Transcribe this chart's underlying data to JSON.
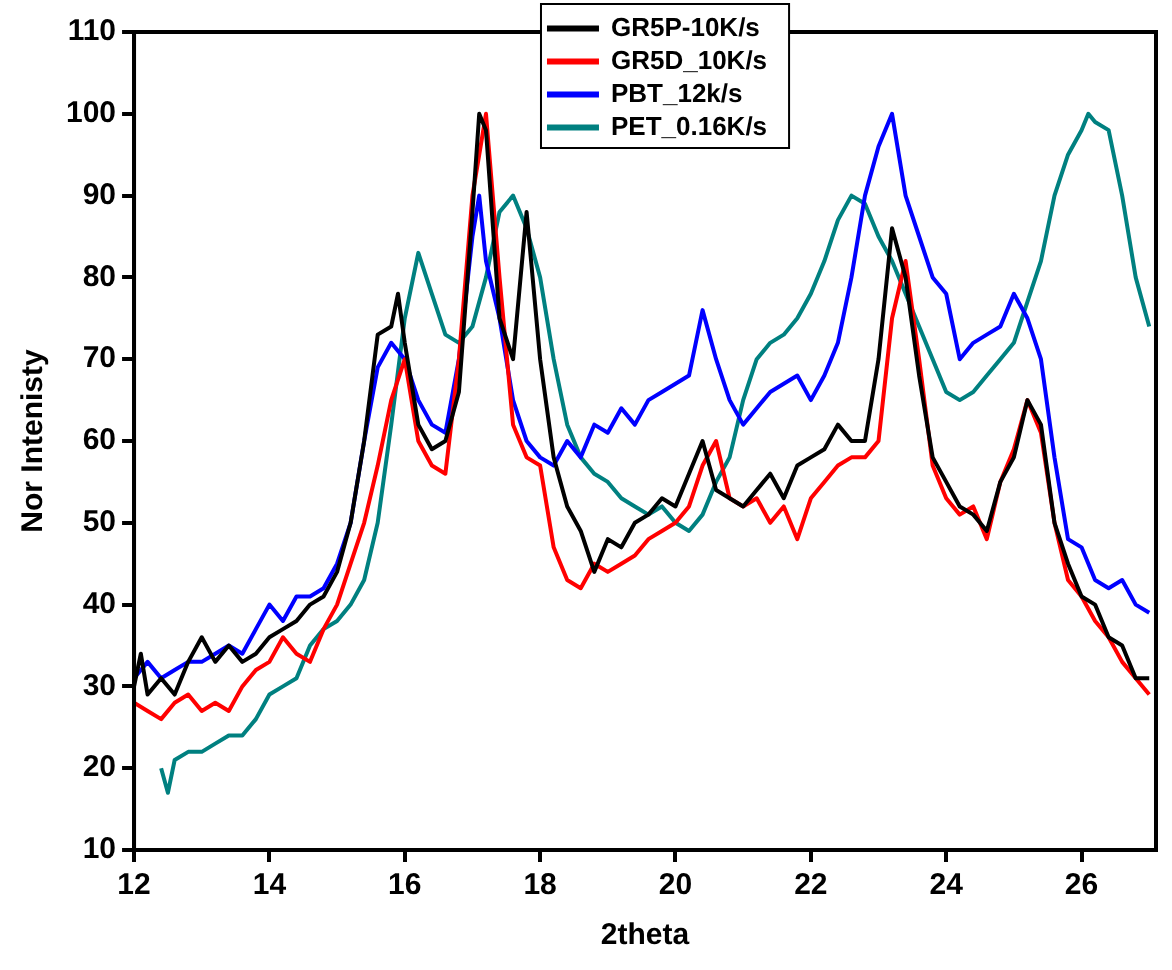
{
  "chart_data": {
    "type": "line",
    "xlabel": "2theta",
    "ylabel": "Nor Intenisty",
    "xlim": [
      12,
      27.1
    ],
    "xticks": [
      12,
      14,
      16,
      18,
      20,
      22,
      24,
      26
    ],
    "ylim": [
      10,
      110
    ],
    "yticks": [
      10,
      20,
      30,
      40,
      50,
      60,
      70,
      80,
      90,
      100,
      110
    ],
    "grid": false,
    "legend": "top",
    "marker": "none",
    "line_style": "solid",
    "series": [
      {
        "name": "GR5P-10K/s",
        "color": "#000000",
        "x": [
          12,
          12.1,
          12.2,
          12.4,
          12.6,
          12.8,
          13,
          13.2,
          13.4,
          13.6,
          13.8,
          14,
          14.2,
          14.4,
          14.6,
          14.8,
          15,
          15.2,
          15.4,
          15.6,
          15.8,
          15.9,
          16,
          16.2,
          16.4,
          16.6,
          16.8,
          17,
          17.1,
          17.2,
          17.4,
          17.6,
          17.8,
          18,
          18.2,
          18.4,
          18.6,
          18.8,
          19,
          19.2,
          19.4,
          19.6,
          19.8,
          20,
          20.2,
          20.4,
          20.6,
          20.8,
          21,
          21.2,
          21.4,
          21.6,
          21.8,
          22,
          22.2,
          22.4,
          22.6,
          22.8,
          23,
          23.2,
          23.4,
          23.6,
          23.8,
          24,
          24.2,
          24.4,
          24.6,
          24.8,
          25,
          25.2,
          25.4,
          25.6,
          25.8,
          26,
          26.2,
          26.4,
          26.6,
          26.8,
          27
        ],
        "values": [
          30,
          34,
          29,
          31,
          29,
          33,
          36,
          33,
          35,
          33,
          34,
          36,
          37,
          38,
          40,
          41,
          44,
          50,
          60,
          73,
          74,
          78,
          72,
          62,
          59,
          60,
          66,
          88,
          100,
          98,
          75,
          70,
          88,
          70,
          58,
          52,
          49,
          44,
          48,
          47,
          50,
          51,
          53,
          52,
          56,
          60,
          54,
          53,
          52,
          54,
          56,
          53,
          57,
          58,
          59,
          62,
          60,
          60,
          70,
          86,
          80,
          68,
          58,
          55,
          52,
          51,
          49,
          55,
          58,
          65,
          62,
          50,
          45,
          41,
          40,
          36,
          35,
          31,
          31
        ]
      },
      {
        "name": "GR5D_10K/s",
        "color": "#ff0000",
        "x": [
          12,
          12.2,
          12.4,
          12.6,
          12.8,
          13,
          13.2,
          13.4,
          13.6,
          13.8,
          14,
          14.2,
          14.4,
          14.6,
          14.8,
          15,
          15.2,
          15.4,
          15.6,
          15.8,
          16,
          16.2,
          16.4,
          16.6,
          16.8,
          17,
          17.2,
          17.4,
          17.6,
          17.8,
          18,
          18.2,
          18.4,
          18.6,
          18.8,
          19,
          19.2,
          19.4,
          19.6,
          19.8,
          20,
          20.2,
          20.4,
          20.6,
          20.8,
          21,
          21.2,
          21.4,
          21.6,
          21.8,
          22,
          22.2,
          22.4,
          22.6,
          22.8,
          23,
          23.2,
          23.4,
          23.6,
          23.8,
          24,
          24.2,
          24.4,
          24.6,
          24.8,
          25,
          25.2,
          25.4,
          25.6,
          25.8,
          26,
          26.2,
          26.4,
          26.6,
          26.8,
          27
        ],
        "values": [
          28,
          27,
          26,
          28,
          29,
          27,
          28,
          27,
          30,
          32,
          33,
          36,
          34,
          33,
          37,
          40,
          45,
          50,
          57,
          65,
          70,
          60,
          57,
          56,
          70,
          90,
          100,
          80,
          62,
          58,
          57,
          47,
          43,
          42,
          45,
          44,
          45,
          46,
          48,
          49,
          50,
          52,
          57,
          60,
          53,
          52,
          53,
          50,
          52,
          48,
          53,
          55,
          57,
          58,
          58,
          60,
          75,
          82,
          70,
          57,
          53,
          51,
          52,
          48,
          55,
          59,
          65,
          61,
          50,
          43,
          41,
          38,
          36,
          33,
          31,
          29
        ]
      },
      {
        "name": "PBT_12k/s",
        "color": "#0000ff",
        "x": [
          12,
          12.2,
          12.4,
          12.6,
          12.8,
          13,
          13.2,
          13.4,
          13.6,
          13.8,
          14,
          14.2,
          14.4,
          14.6,
          14.8,
          15,
          15.2,
          15.4,
          15.6,
          15.8,
          16,
          16.2,
          16.4,
          16.6,
          16.8,
          17,
          17.1,
          17.2,
          17.4,
          17.6,
          17.8,
          18,
          18.2,
          18.4,
          18.6,
          18.8,
          19,
          19.2,
          19.4,
          19.6,
          19.8,
          20,
          20.2,
          20.4,
          20.6,
          20.8,
          21,
          21.2,
          21.4,
          21.6,
          21.8,
          22,
          22.2,
          22.4,
          22.6,
          22.8,
          23,
          23.2,
          23.4,
          23.6,
          23.8,
          24,
          24.2,
          24.4,
          24.6,
          24.8,
          25,
          25.2,
          25.4,
          25.6,
          25.8,
          26,
          26.2,
          26.4,
          26.6,
          26.8,
          27
        ],
        "values": [
          31,
          33,
          31,
          32,
          33,
          33,
          34,
          35,
          34,
          37,
          40,
          38,
          41,
          41,
          42,
          45,
          50,
          60,
          69,
          72,
          70,
          65,
          62,
          61,
          70,
          85,
          90,
          82,
          75,
          65,
          60,
          58,
          57,
          60,
          58,
          62,
          61,
          64,
          62,
          65,
          66,
          67,
          68,
          76,
          70,
          65,
          62,
          64,
          66,
          67,
          68,
          65,
          68,
          72,
          80,
          90,
          96,
          100,
          90,
          85,
          80,
          78,
          70,
          72,
          73,
          74,
          78,
          75,
          70,
          58,
          48,
          47,
          43,
          42,
          43,
          40,
          39
        ]
      },
      {
        "name": "PET_0.16K/s",
        "color": "#008080",
        "x": [
          12.4,
          12.5,
          12.6,
          12.8,
          13,
          13.2,
          13.4,
          13.6,
          13.8,
          14,
          14.2,
          14.4,
          14.6,
          14.8,
          15,
          15.2,
          15.4,
          15.6,
          15.8,
          16,
          16.2,
          16.4,
          16.6,
          16.8,
          17,
          17.2,
          17.4,
          17.6,
          17.8,
          18,
          18.2,
          18.4,
          18.6,
          18.8,
          19,
          19.2,
          19.4,
          19.6,
          19.8,
          20,
          20.2,
          20.4,
          20.6,
          20.8,
          21,
          21.2,
          21.4,
          21.6,
          21.8,
          22,
          22.2,
          22.4,
          22.6,
          22.8,
          23,
          23.2,
          23.4,
          23.6,
          23.8,
          24,
          24.2,
          24.4,
          24.6,
          24.8,
          25,
          25.2,
          25.4,
          25.6,
          25.8,
          26,
          26.1,
          26.2,
          26.4,
          26.6,
          26.8,
          27
        ],
        "values": [
          20,
          17,
          21,
          22,
          22,
          23,
          24,
          24,
          26,
          29,
          30,
          31,
          35,
          37,
          38,
          40,
          43,
          50,
          62,
          75,
          83,
          78,
          73,
          72,
          74,
          80,
          88,
          90,
          86,
          80,
          70,
          62,
          58,
          56,
          55,
          53,
          52,
          51,
          52,
          50,
          49,
          51,
          55,
          58,
          65,
          70,
          72,
          73,
          75,
          78,
          82,
          87,
          90,
          89,
          85,
          82,
          78,
          74,
          70,
          66,
          65,
          66,
          68,
          70,
          72,
          77,
          82,
          90,
          95,
          98,
          100,
          99,
          98,
          90,
          80,
          74
        ]
      }
    ]
  }
}
